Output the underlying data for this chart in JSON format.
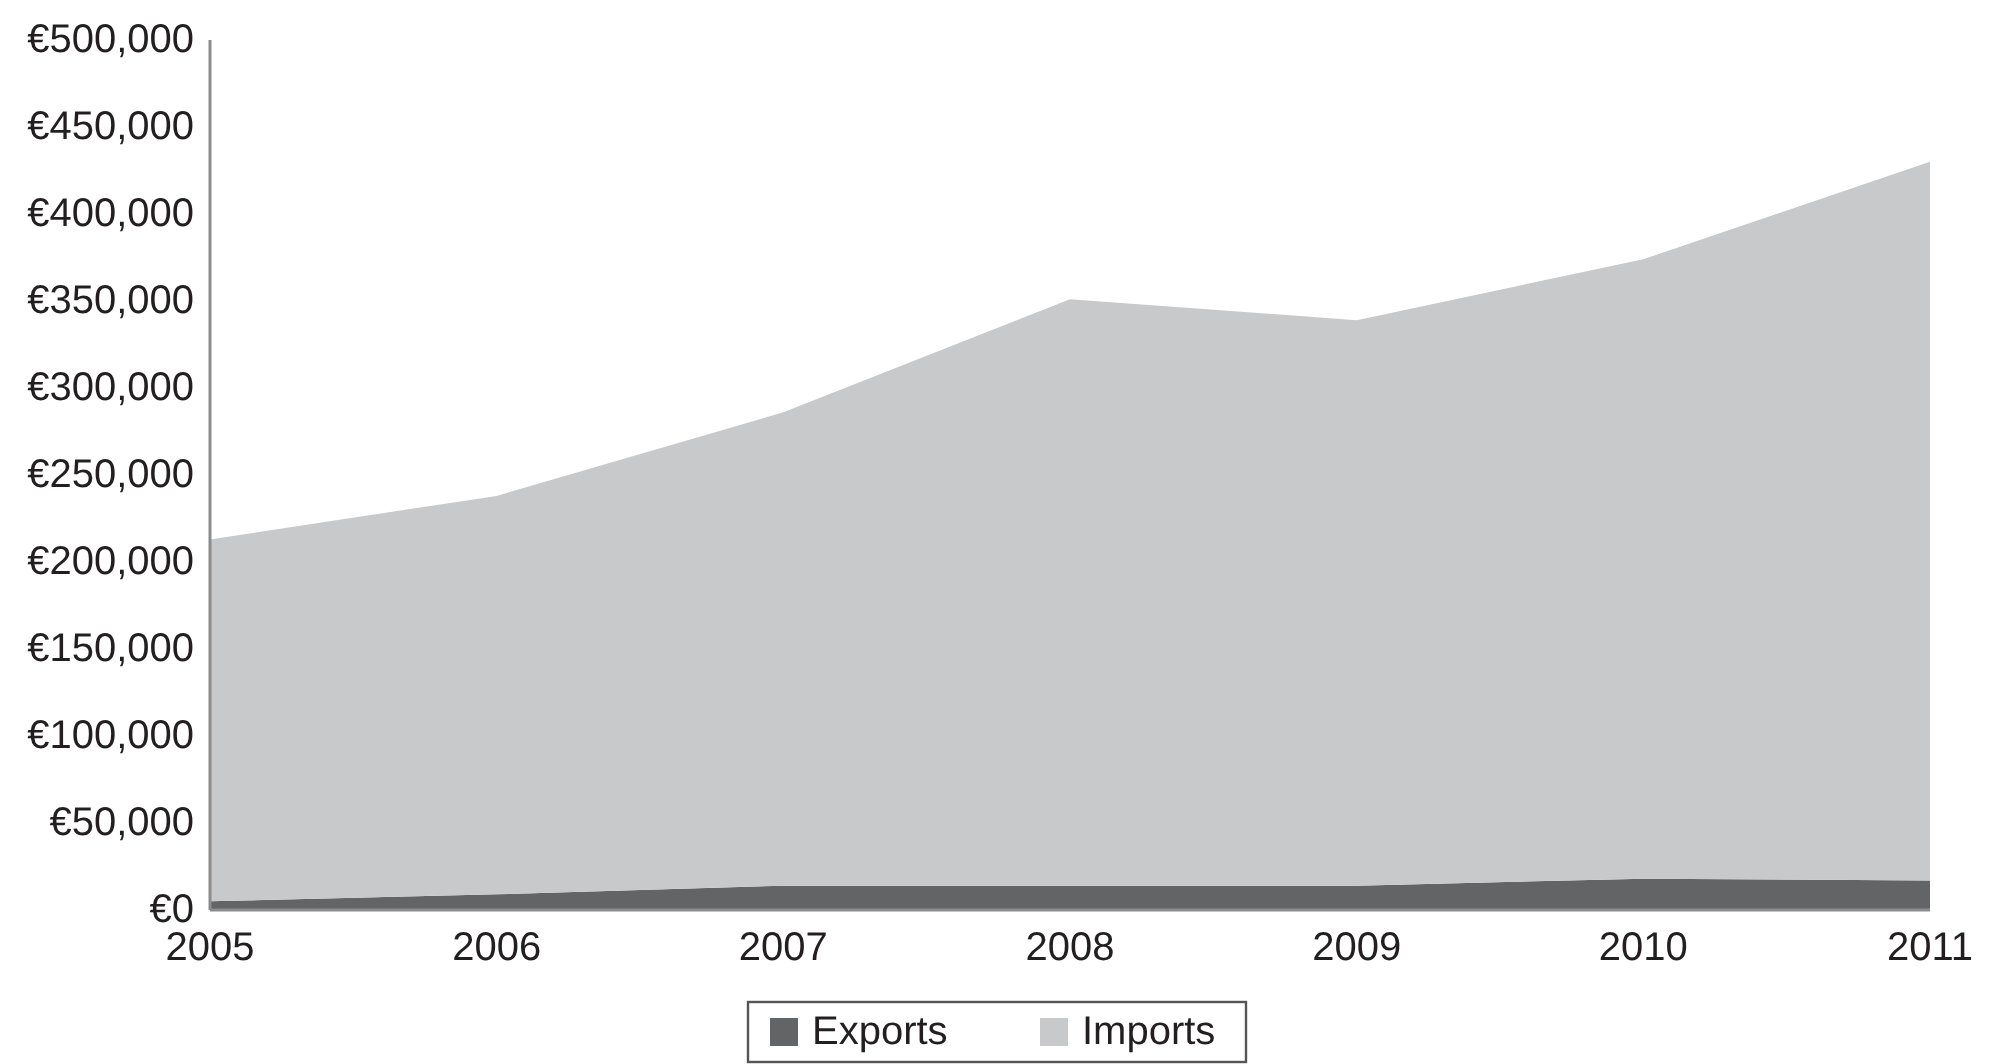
{
  "chart_data": {
    "type": "area",
    "stacked": true,
    "categories": [
      "2005",
      "2006",
      "2007",
      "2008",
      "2009",
      "2010",
      "2011"
    ],
    "series": [
      {
        "name": "Exports",
        "color": "#636466",
        "values": [
          5000,
          9000,
          14000,
          14000,
          14000,
          18000,
          17000
        ]
      },
      {
        "name": "Imports",
        "color": "#c8c9cb",
        "values": [
          208000,
          229000,
          272000,
          337000,
          325000,
          356000,
          413000
        ]
      }
    ],
    "ylim": [
      0,
      500000
    ],
    "yticks": [
      {
        "value": 0,
        "label": "€0"
      },
      {
        "value": 50000,
        "label": "€50,000"
      },
      {
        "value": 100000,
        "label": "€100,000"
      },
      {
        "value": 150000,
        "label": "€150,000"
      },
      {
        "value": 200000,
        "label": "€200,000"
      },
      {
        "value": 250000,
        "label": "€250,000"
      },
      {
        "value": 300000,
        "label": "€300,000"
      },
      {
        "value": 350000,
        "label": "€350,000"
      },
      {
        "value": 400000,
        "label": "€400,000"
      },
      {
        "value": 450000,
        "label": "€450,000"
      },
      {
        "value": 500000,
        "label": "€500,000"
      }
    ],
    "legend": "bottom"
  }
}
